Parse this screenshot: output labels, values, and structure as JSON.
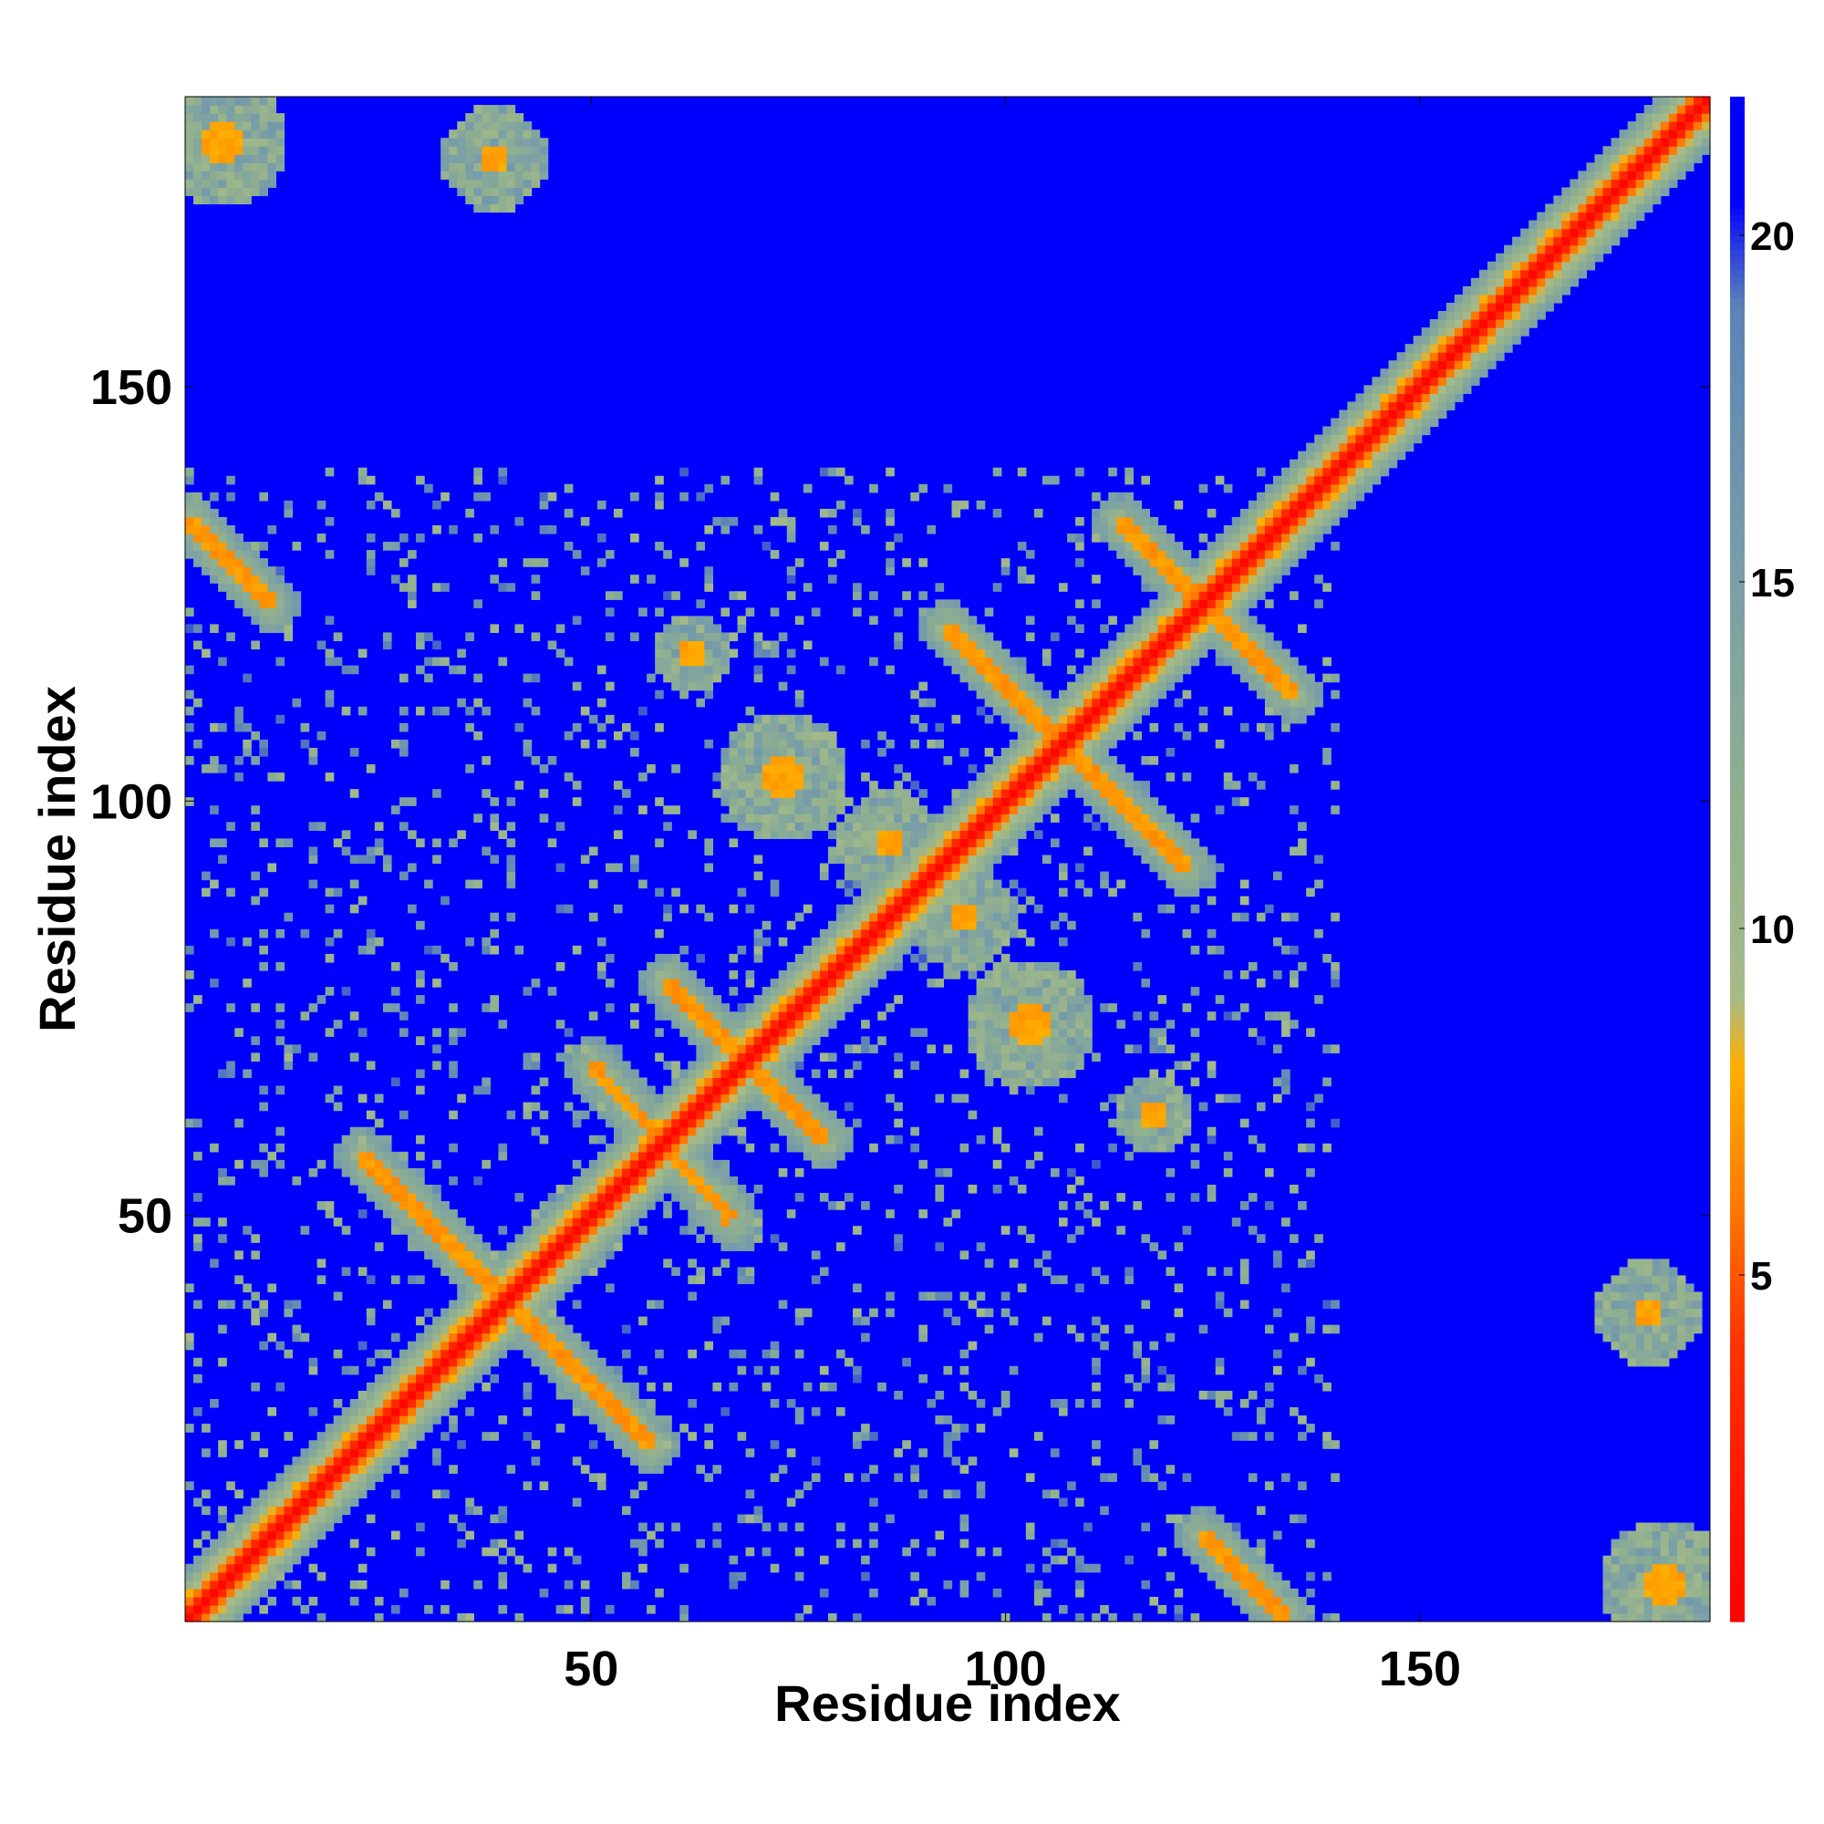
{
  "chart_data": {
    "type": "heatmap",
    "subtype": "residue contact / distance map",
    "title": "",
    "xlabel": "Residue index",
    "ylabel": "Residue index",
    "n_residues": 185,
    "xlim": [
      1,
      185
    ],
    "ylim": [
      1,
      185
    ],
    "x_ticks": [
      50,
      100,
      150
    ],
    "y_ticks": [
      50,
      100,
      150
    ],
    "colorbar": {
      "ticks": [
        5,
        10,
        15,
        20
      ],
      "range": [
        0,
        22
      ],
      "saturation_value": 21,
      "colors": [
        {
          "value": 0,
          "color": "#ff0000"
        },
        {
          "value": 4,
          "color": "#ff3300"
        },
        {
          "value": 6,
          "color": "#ff7a00"
        },
        {
          "value": 8,
          "color": "#ffae00"
        },
        {
          "value": 9,
          "color": "#a7bb88"
        },
        {
          "value": 12,
          "color": "#8faf90"
        },
        {
          "value": 15,
          "color": "#7a9fa7"
        },
        {
          "value": 19,
          "color": "#5b83b6"
        },
        {
          "value": 20.5,
          "color": "#0000ff"
        },
        {
          "value": 22,
          "color": "#0000ff"
        }
      ]
    },
    "background_color": "#0000ff",
    "diagonal_halfwidth": 2.5,
    "features": [
      {
        "kind": "anti-diagonal",
        "description": "beta-hairpin",
        "from": [
          22,
          57
        ],
        "to": [
          57,
          22
        ]
      },
      {
        "kind": "anti-diagonal",
        "description": "beta-hairpin",
        "from": [
          50,
          68
        ],
        "to": [
          67,
          49
        ]
      },
      {
        "kind": "anti-diagonal",
        "description": "beta-hairpin",
        "from": [
          59,
          78
        ],
        "to": [
          78,
          59
        ]
      },
      {
        "kind": "anti-diagonal",
        "description": "beta-hairpin",
        "from": [
          93,
          121
        ],
        "to": [
          122,
          92
        ]
      },
      {
        "kind": "anti-diagonal",
        "description": "beta-hairpin",
        "from": [
          114,
          134
        ],
        "to": [
          135,
          113
        ]
      },
      {
        "kind": "anti-diagonal",
        "description": "long-range contact",
        "from": [
          1,
          134
        ],
        "to": [
          11,
          124
        ]
      },
      {
        "kind": "anti-diagonal",
        "description": "long-range contact",
        "from": [
          124,
          11
        ],
        "to": [
          134,
          1
        ]
      },
      {
        "kind": "patch",
        "description": "contact cluster",
        "center": [
          73,
          103
        ],
        "size": 5
      },
      {
        "kind": "patch",
        "description": "contact cluster",
        "center": [
          103,
          73
        ],
        "size": 5
      },
      {
        "kind": "patch",
        "description": "contact cluster",
        "center": [
          86,
          95
        ],
        "size": 4
      },
      {
        "kind": "patch",
        "description": "contact cluster",
        "center": [
          95,
          86
        ],
        "size": 4
      },
      {
        "kind": "patch",
        "description": "contact cluster",
        "center": [
          62,
          118
        ],
        "size": 3
      },
      {
        "kind": "patch",
        "description": "contact cluster",
        "center": [
          118,
          62
        ],
        "size": 3
      },
      {
        "kind": "patch",
        "description": "contact cluster",
        "center": [
          180,
          5
        ],
        "size": 5
      },
      {
        "kind": "patch",
        "description": "contact cluster",
        "center": [
          5,
          180
        ],
        "size": 5
      },
      {
        "kind": "patch",
        "description": "contact cluster",
        "center": [
          178,
          38
        ],
        "size": 4
      },
      {
        "kind": "patch",
        "description": "contact cluster",
        "center": [
          38,
          178
        ],
        "size": 4
      }
    ]
  }
}
